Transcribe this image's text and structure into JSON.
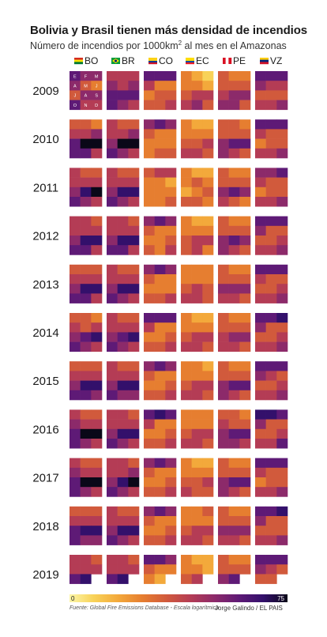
{
  "title": "Bolivia y Brasil tienen más densidad de incendios",
  "subtitle_main": "Número de incendios por 1000km",
  "subtitle_sup": "2",
  "subtitle_rest": " al mes en el Amazonas",
  "source": "Fuente: Global Fire Emissions Database - Escala logarítmica",
  "credit": "Jorge Galindo / EL PAIS",
  "colors": {
    "scale": [
      "#fcf6a8",
      "#f8d258",
      "#f3a93b",
      "#e67e30",
      "#d15a3c",
      "#b43c55",
      "#8c2a6a",
      "#5e1a76",
      "#33106b",
      "#0a0818"
    ]
  },
  "countries": [
    {
      "code": "BO",
      "flag": [
        "#d52b1e",
        "#f9e300",
        "#007934"
      ]
    },
    {
      "code": "BR",
      "flag": [
        "#009c3b",
        "#ffdf00",
        "#002776"
      ]
    },
    {
      "code": "CO",
      "flag": [
        "#fcd116",
        "#fcd116",
        "#003893",
        "#ce1126"
      ]
    },
    {
      "code": "EC",
      "flag": [
        "#ffdd00",
        "#ffdd00",
        "#034ea2",
        "#ed1c24"
      ]
    },
    {
      "code": "PE",
      "flag": [
        "#d91023",
        "#ffffff",
        "#d91023"
      ]
    },
    {
      "code": "VZ",
      "flag": [
        "#ffcc00",
        "#00247d",
        "#cf142b"
      ]
    }
  ],
  "chart_data": {
    "type": "heatmap",
    "title": "Bolivia y Brasil tienen más densidad de incendios",
    "subtitle": "Número de incendios por 1000km2 al mes en el Amazonas",
    "color_scale": "logarítmica",
    "legend": {
      "min_label": "0",
      "max_label": "75",
      "min": 0,
      "max": 75,
      "placement": "bottom"
    },
    "month_labels": [
      "E",
      "F",
      "M",
      "A",
      "M",
      "J",
      "J",
      "A",
      "S",
      "O",
      "N",
      "D"
    ],
    "years": [
      "2009",
      "2010",
      "2011",
      "2012",
      "2013",
      "2014",
      "2015",
      "2016",
      "2017",
      "2018",
      "2019"
    ],
    "series": [
      {
        "name": "BO",
        "values": [
          [
            7,
            6,
            6,
            6,
            4,
            3,
            4,
            6,
            6,
            7,
            5,
            5
          ],
          [
            4,
            4,
            3,
            5,
            5,
            6,
            7,
            9,
            9,
            7,
            7,
            5
          ],
          [
            5,
            4,
            4,
            5,
            5,
            5,
            6,
            8,
            9,
            7,
            6,
            5
          ],
          [
            5,
            5,
            4,
            5,
            5,
            5,
            6,
            8,
            8,
            7,
            7,
            5
          ],
          [
            4,
            4,
            4,
            5,
            5,
            5,
            6,
            8,
            8,
            7,
            7,
            5
          ],
          [
            4,
            4,
            3,
            5,
            4,
            5,
            6,
            7,
            8,
            7,
            6,
            5
          ],
          [
            4,
            4,
            4,
            5,
            5,
            5,
            6,
            8,
            8,
            7,
            7,
            6
          ],
          [
            5,
            4,
            4,
            6,
            5,
            5,
            7,
            9,
            9,
            7,
            6,
            5
          ],
          [
            5,
            4,
            4,
            6,
            5,
            5,
            7,
            9,
            9,
            7,
            6,
            5
          ],
          [
            4,
            4,
            4,
            5,
            5,
            5,
            7,
            8,
            8,
            7,
            6,
            6
          ],
          [
            5,
            5,
            4,
            5,
            5,
            5,
            7,
            8,
            null,
            null,
            null,
            null
          ]
        ]
      },
      {
        "name": "BR",
        "values": [
          [
            5,
            5,
            5,
            6,
            5,
            6,
            7,
            7,
            7,
            7,
            6,
            5
          ],
          [
            5,
            4,
            4,
            5,
            5,
            6,
            6,
            9,
            9,
            7,
            6,
            5
          ],
          [
            5,
            4,
            4,
            5,
            5,
            5,
            6,
            8,
            8,
            7,
            6,
            5
          ],
          [
            5,
            5,
            4,
            5,
            5,
            5,
            6,
            8,
            8,
            7,
            7,
            5
          ],
          [
            5,
            4,
            4,
            5,
            5,
            5,
            6,
            8,
            8,
            7,
            6,
            5
          ],
          [
            5,
            4,
            4,
            5,
            5,
            5,
            6,
            7,
            8,
            7,
            6,
            5
          ],
          [
            5,
            4,
            4,
            5,
            5,
            5,
            6,
            8,
            8,
            7,
            6,
            6
          ],
          [
            5,
            5,
            4,
            5,
            5,
            5,
            6,
            8,
            8,
            7,
            6,
            5
          ],
          [
            5,
            5,
            4,
            5,
            5,
            6,
            6,
            8,
            9,
            7,
            6,
            5
          ],
          [
            5,
            4,
            4,
            5,
            5,
            5,
            6,
            8,
            8,
            7,
            6,
            5
          ],
          [
            5,
            5,
            4,
            5,
            5,
            5,
            7,
            8,
            null,
            null,
            null,
            null
          ]
        ]
      },
      {
        "name": "CO",
        "values": [
          [
            7,
            7,
            7,
            5,
            3,
            3,
            3,
            4,
            4,
            4,
            4,
            5
          ],
          [
            6,
            7,
            6,
            4,
            3,
            3,
            3,
            3,
            3,
            3,
            4,
            4
          ],
          [
            4,
            5,
            5,
            3,
            3,
            2,
            3,
            3,
            3,
            3,
            3,
            4
          ],
          [
            6,
            7,
            6,
            4,
            3,
            3,
            3,
            3,
            4,
            4,
            3,
            5
          ],
          [
            6,
            7,
            6,
            4,
            3,
            3,
            3,
            3,
            3,
            4,
            4,
            5
          ],
          [
            7,
            7,
            7,
            5,
            3,
            3,
            3,
            3,
            4,
            4,
            4,
            5
          ],
          [
            6,
            7,
            6,
            4,
            3,
            3,
            3,
            3,
            4,
            4,
            4,
            5
          ],
          [
            7,
            8,
            7,
            5,
            3,
            3,
            3,
            3,
            4,
            4,
            4,
            5
          ],
          [
            6,
            7,
            6,
            4,
            3,
            3,
            3,
            3,
            4,
            4,
            4,
            5
          ],
          [
            6,
            7,
            6,
            4,
            3,
            3,
            3,
            3,
            4,
            4,
            4,
            5
          ],
          [
            7,
            7,
            6,
            4,
            3,
            3,
            3,
            2,
            null,
            null,
            null,
            null
          ]
        ]
      },
      {
        "name": "EC",
        "values": [
          [
            3,
            2,
            1,
            3,
            3,
            2,
            4,
            5,
            5,
            5,
            6,
            4
          ],
          [
            3,
            2,
            2,
            3,
            3,
            3,
            4,
            4,
            5,
            5,
            5,
            4
          ],
          [
            3,
            2,
            2,
            3,
            4,
            3,
            2,
            3,
            4,
            4,
            4,
            3
          ],
          [
            3,
            2,
            2,
            3,
            3,
            3,
            4,
            5,
            5,
            4,
            5,
            3
          ],
          [
            3,
            3,
            3,
            3,
            3,
            3,
            4,
            5,
            4,
            5,
            5,
            4
          ],
          [
            3,
            2,
            2,
            3,
            3,
            3,
            4,
            5,
            5,
            5,
            5,
            4
          ],
          [
            3,
            3,
            2,
            3,
            3,
            3,
            4,
            5,
            5,
            5,
            5,
            4
          ],
          [
            3,
            3,
            3,
            3,
            3,
            3,
            4,
            5,
            5,
            5,
            5,
            4
          ],
          [
            3,
            2,
            2,
            3,
            3,
            3,
            4,
            4,
            5,
            5,
            4,
            4
          ],
          [
            3,
            3,
            4,
            3,
            3,
            3,
            4,
            5,
            5,
            5,
            5,
            4
          ],
          [
            3,
            2,
            2,
            3,
            3,
            2,
            4,
            5,
            null,
            null,
            null,
            null
          ]
        ]
      },
      {
        "name": "PE",
        "values": [
          [
            4,
            3,
            3,
            4,
            4,
            4,
            5,
            6,
            6,
            6,
            6,
            4
          ],
          [
            4,
            4,
            3,
            4,
            4,
            4,
            6,
            7,
            7,
            6,
            5,
            4
          ],
          [
            4,
            3,
            3,
            4,
            4,
            4,
            6,
            7,
            6,
            5,
            4,
            3
          ],
          [
            4,
            3,
            3,
            4,
            4,
            4,
            6,
            7,
            6,
            6,
            5,
            4
          ],
          [
            4,
            3,
            3,
            4,
            4,
            4,
            6,
            6,
            6,
            5,
            5,
            4
          ],
          [
            4,
            3,
            3,
            4,
            4,
            4,
            5,
            6,
            6,
            5,
            5,
            4
          ],
          [
            4,
            3,
            3,
            4,
            4,
            4,
            6,
            7,
            7,
            6,
            5,
            4
          ],
          [
            4,
            4,
            3,
            5,
            4,
            4,
            6,
            7,
            7,
            6,
            6,
            5
          ],
          [
            4,
            3,
            3,
            4,
            4,
            4,
            6,
            7,
            7,
            6,
            5,
            4
          ],
          [
            4,
            3,
            3,
            4,
            4,
            4,
            6,
            6,
            6,
            5,
            5,
            4
          ],
          [
            4,
            3,
            3,
            4,
            4,
            4,
            6,
            7,
            null,
            null,
            null,
            null
          ]
        ]
      },
      {
        "name": "VZ",
        "values": [
          [
            7,
            7,
            7,
            6,
            5,
            5,
            4,
            4,
            4,
            5,
            5,
            6
          ],
          [
            7,
            7,
            7,
            5,
            4,
            4,
            3,
            4,
            4,
            5,
            5,
            6
          ],
          [
            6,
            6,
            7,
            5,
            4,
            4,
            3,
            4,
            4,
            5,
            5,
            6
          ],
          [
            7,
            7,
            7,
            6,
            4,
            4,
            4,
            4,
            5,
            5,
            5,
            6
          ],
          [
            7,
            7,
            7,
            5,
            4,
            4,
            4,
            4,
            5,
            5,
            5,
            6
          ],
          [
            7,
            7,
            8,
            6,
            4,
            4,
            4,
            4,
            5,
            5,
            5,
            6
          ],
          [
            7,
            7,
            7,
            6,
            5,
            4,
            4,
            4,
            5,
            5,
            5,
            6
          ],
          [
            8,
            8,
            7,
            6,
            4,
            4,
            4,
            4,
            5,
            5,
            5,
            7
          ],
          [
            7,
            7,
            7,
            5,
            4,
            4,
            3,
            4,
            4,
            5,
            5,
            6
          ],
          [
            7,
            7,
            8,
            6,
            4,
            4,
            4,
            4,
            4,
            5,
            5,
            6
          ],
          [
            7,
            7,
            7,
            6,
            5,
            4,
            4,
            4,
            null,
            null,
            null,
            null
          ]
        ]
      }
    ]
  }
}
